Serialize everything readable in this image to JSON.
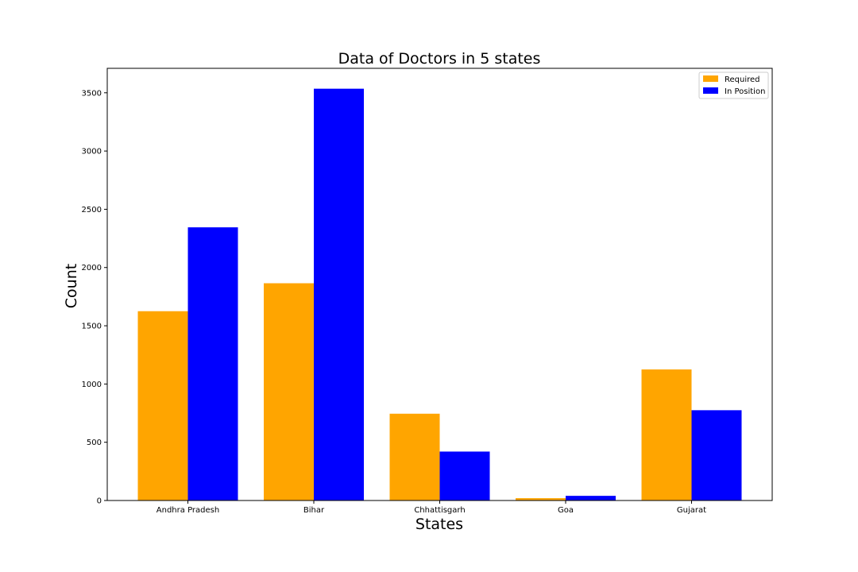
{
  "chart_data": {
    "type": "bar",
    "title": "Data of Doctors in 5 states",
    "xlabel": "States",
    "ylabel": "Count",
    "categories": [
      "Andhra Pradesh",
      "Bihar",
      "Chhattisgarh",
      "Goa",
      "Gujarat"
    ],
    "series": [
      {
        "name": "Required",
        "color": "#FFA500",
        "values": [
          1625,
          1865,
          745,
          20,
          1125
        ]
      },
      {
        "name": "In Position",
        "color": "#0000FF",
        "values": [
          2345,
          3535,
          420,
          40,
          775
        ]
      }
    ],
    "ylim": [
      0,
      3710
    ],
    "yticks": [
      0,
      500,
      1000,
      1500,
      2000,
      2500,
      3000,
      3500
    ],
    "grid": false,
    "legend": "top-right"
  }
}
